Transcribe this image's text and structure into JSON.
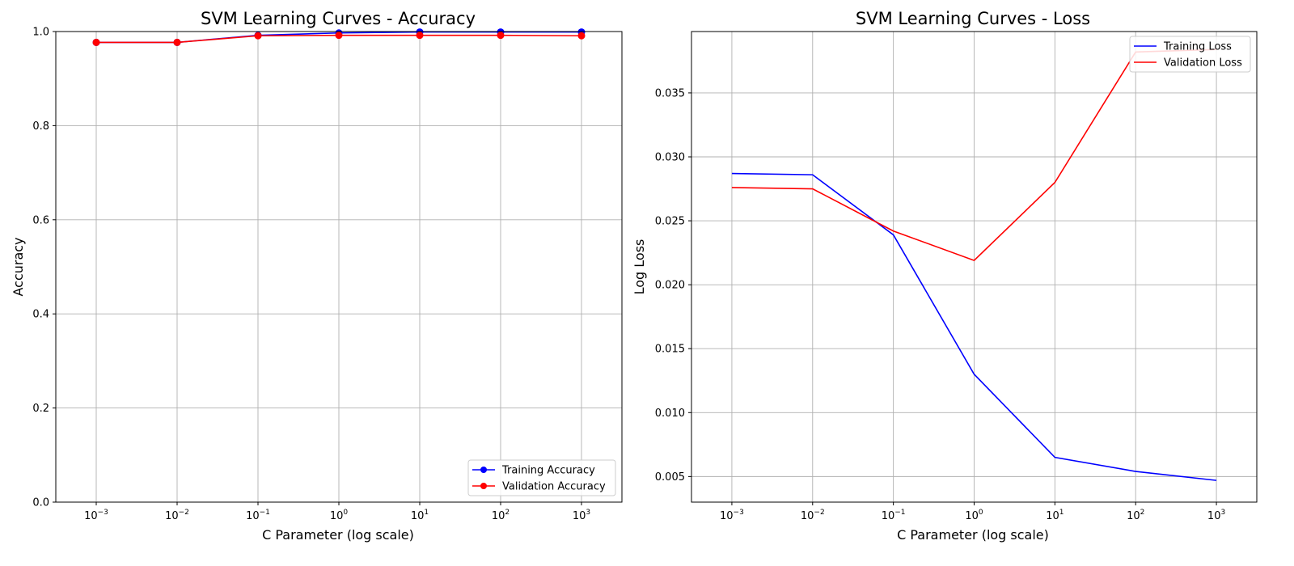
{
  "chart_data": [
    {
      "type": "line",
      "title": "SVM Learning Curves - Accuracy",
      "xlabel": "C Parameter (log scale)",
      "ylabel": "Accuracy",
      "xscale": "log",
      "x": [
        0.001,
        0.01,
        0.1,
        1,
        10,
        100,
        1000
      ],
      "xticks": [
        {
          "base": "10",
          "exp": "−3"
        },
        {
          "base": "10",
          "exp": "−2"
        },
        {
          "base": "10",
          "exp": "−1"
        },
        {
          "base": "10",
          "exp": "0"
        },
        {
          "base": "10",
          "exp": "1"
        },
        {
          "base": "10",
          "exp": "2"
        },
        {
          "base": "10",
          "exp": "3"
        }
      ],
      "yticks": [
        "0.0",
        "0.2",
        "0.4",
        "0.6",
        "0.8",
        "1.0"
      ],
      "ylim": [
        0,
        1
      ],
      "grid": true,
      "legend_position": "lower-right",
      "series": [
        {
          "name": "Training Accuracy",
          "color": "#0000ff",
          "marker": "circle",
          "values": [
            0.977,
            0.977,
            0.992,
            0.997,
            0.999,
            0.999,
            0.999
          ]
        },
        {
          "name": "Validation Accuracy",
          "color": "#ff0000",
          "marker": "circle",
          "values": [
            0.977,
            0.977,
            0.991,
            0.992,
            0.992,
            0.992,
            0.991
          ]
        }
      ]
    },
    {
      "type": "line",
      "title": "SVM Learning Curves - Loss",
      "xlabel": "C Parameter (log scale)",
      "ylabel": "Log Loss",
      "xscale": "log",
      "x": [
        0.001,
        0.01,
        0.1,
        1,
        10,
        100,
        1000
      ],
      "xticks": [
        {
          "base": "10",
          "exp": "−3"
        },
        {
          "base": "10",
          "exp": "−2"
        },
        {
          "base": "10",
          "exp": "−1"
        },
        {
          "base": "10",
          "exp": "0"
        },
        {
          "base": "10",
          "exp": "1"
        },
        {
          "base": "10",
          "exp": "2"
        },
        {
          "base": "10",
          "exp": "3"
        }
      ],
      "yticks": [
        "0.005",
        "0.010",
        "0.015",
        "0.020",
        "0.025",
        "0.030",
        "0.035"
      ],
      "ylim": [
        0.003,
        0.0398
      ],
      "grid": true,
      "legend_position": "upper-right",
      "series": [
        {
          "name": "Training Loss",
          "color": "#0000ff",
          "marker": "none",
          "values": [
            0.0287,
            0.0286,
            0.0239,
            0.013,
            0.0065,
            0.0054,
            0.0047
          ]
        },
        {
          "name": "Validation Loss",
          "color": "#ff0000",
          "marker": "none",
          "values": [
            0.0276,
            0.0275,
            0.0242,
            0.0219,
            0.028,
            0.0382,
            0.0384
          ]
        }
      ]
    }
  ]
}
